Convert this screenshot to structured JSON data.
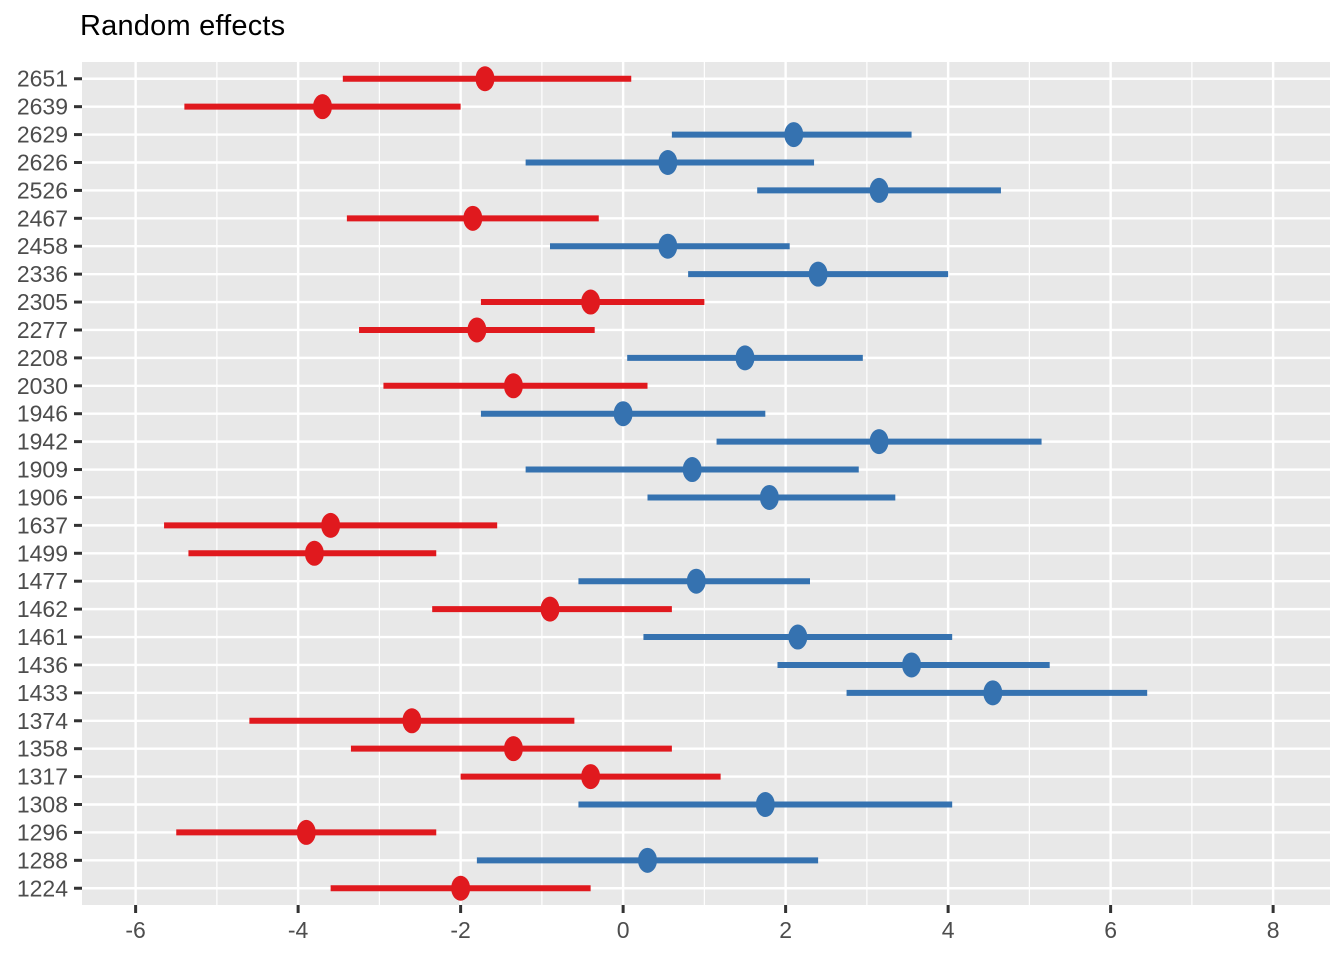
{
  "chart_data": {
    "type": "forest",
    "title": "Random effects",
    "xlabel": "",
    "ylabel": "",
    "xlim": [
      -6.66,
      8.7
    ],
    "x_ticks": [
      -6,
      -4,
      -2,
      0,
      2,
      4,
      6,
      8
    ],
    "x_tick_labels": [
      "-6",
      "-4",
      "-2",
      "0",
      "2",
      "4",
      "6",
      "8"
    ],
    "x_minor_ticks": [
      -5,
      -3,
      -1,
      1,
      3,
      5,
      7
    ],
    "legend": "none",
    "panel_bg": "#E8E8E8",
    "gridline_color": "#FFFFFF",
    "axis_text_color": "#4D4D4D",
    "tick_mark_color": "#333333",
    "colors": {
      "red": "#E0191E",
      "blue": "#3572B0"
    },
    "rows": [
      {
        "id": "2651",
        "group": "red",
        "estimate": -1.7,
        "lower": -3.45,
        "upper": 0.1
      },
      {
        "id": "2639",
        "group": "red",
        "estimate": -3.7,
        "lower": -5.4,
        "upper": -2.0
      },
      {
        "id": "2629",
        "group": "blue",
        "estimate": 2.1,
        "lower": 0.6,
        "upper": 3.55
      },
      {
        "id": "2626",
        "group": "blue",
        "estimate": 0.55,
        "lower": -1.2,
        "upper": 2.35
      },
      {
        "id": "2526",
        "group": "blue",
        "estimate": 3.15,
        "lower": 1.65,
        "upper": 4.65
      },
      {
        "id": "2467",
        "group": "red",
        "estimate": -1.85,
        "lower": -3.4,
        "upper": -0.3
      },
      {
        "id": "2458",
        "group": "blue",
        "estimate": 0.55,
        "lower": -0.9,
        "upper": 2.05
      },
      {
        "id": "2336",
        "group": "blue",
        "estimate": 2.4,
        "lower": 0.8,
        "upper": 4.0
      },
      {
        "id": "2305",
        "group": "red",
        "estimate": -0.4,
        "lower": -1.75,
        "upper": 1.0
      },
      {
        "id": "2277",
        "group": "red",
        "estimate": -1.8,
        "lower": -3.25,
        "upper": -0.35
      },
      {
        "id": "2208",
        "group": "blue",
        "estimate": 1.5,
        "lower": 0.05,
        "upper": 2.95
      },
      {
        "id": "2030",
        "group": "red",
        "estimate": -1.35,
        "lower": -2.95,
        "upper": 0.3
      },
      {
        "id": "1946",
        "group": "blue",
        "estimate": 0.0,
        "lower": -1.75,
        "upper": 1.75
      },
      {
        "id": "1942",
        "group": "blue",
        "estimate": 3.15,
        "lower": 1.15,
        "upper": 5.15
      },
      {
        "id": "1909",
        "group": "blue",
        "estimate": 0.85,
        "lower": -1.2,
        "upper": 2.9
      },
      {
        "id": "1906",
        "group": "blue",
        "estimate": 1.8,
        "lower": 0.3,
        "upper": 3.35
      },
      {
        "id": "1637",
        "group": "red",
        "estimate": -3.6,
        "lower": -5.65,
        "upper": -1.55
      },
      {
        "id": "1499",
        "group": "red",
        "estimate": -3.8,
        "lower": -5.35,
        "upper": -2.3
      },
      {
        "id": "1477",
        "group": "blue",
        "estimate": 0.9,
        "lower": -0.55,
        "upper": 2.3
      },
      {
        "id": "1462",
        "group": "red",
        "estimate": -0.9,
        "lower": -2.35,
        "upper": 0.6
      },
      {
        "id": "1461",
        "group": "blue",
        "estimate": 2.15,
        "lower": 0.25,
        "upper": 4.05
      },
      {
        "id": "1436",
        "group": "blue",
        "estimate": 3.55,
        "lower": 1.9,
        "upper": 5.25
      },
      {
        "id": "1433",
        "group": "blue",
        "estimate": 4.55,
        "lower": 2.75,
        "upper": 6.45
      },
      {
        "id": "1374",
        "group": "red",
        "estimate": -2.6,
        "lower": -4.6,
        "upper": -0.6
      },
      {
        "id": "1358",
        "group": "red",
        "estimate": -1.35,
        "lower": -3.35,
        "upper": 0.6
      },
      {
        "id": "1317",
        "group": "red",
        "estimate": -0.4,
        "lower": -2.0,
        "upper": 1.2
      },
      {
        "id": "1308",
        "group": "blue",
        "estimate": 1.75,
        "lower": -0.55,
        "upper": 4.05
      },
      {
        "id": "1296",
        "group": "red",
        "estimate": -3.9,
        "lower": -5.5,
        "upper": -2.3
      },
      {
        "id": "1288",
        "group": "blue",
        "estimate": 0.3,
        "lower": -1.8,
        "upper": 2.4
      },
      {
        "id": "1224",
        "group": "red",
        "estimate": -2.0,
        "lower": -3.6,
        "upper": -0.4
      }
    ]
  }
}
